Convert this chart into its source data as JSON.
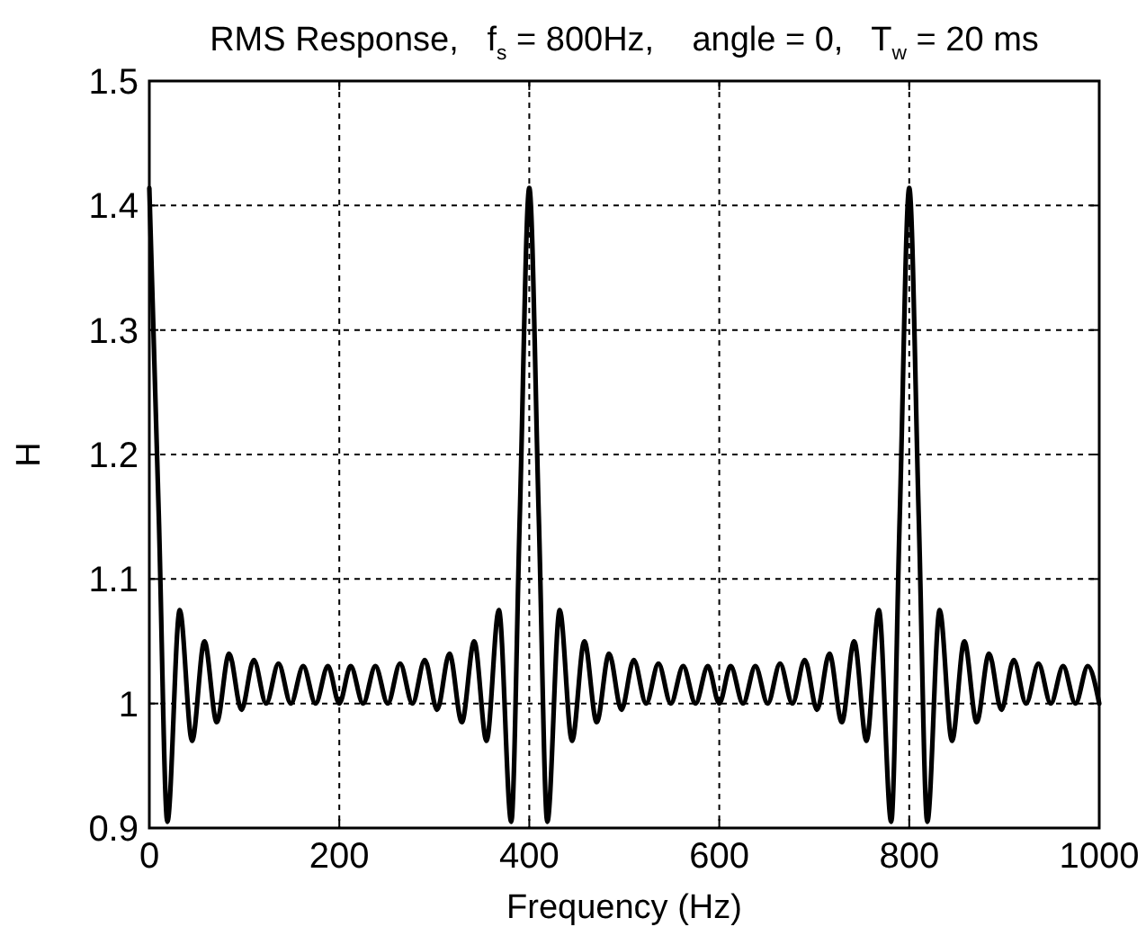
{
  "chart_data": {
    "type": "line",
    "title": "RMS Response,   f$_{s}$ = 800Hz,    angle = 0,   T$_{w}$ = 20 ms",
    "xlabel": "Frequency (Hz)",
    "ylabel": "H",
    "x": [
      0,
      10,
      19,
      32,
      45,
      58,
      71,
      84,
      97,
      110,
      123,
      136,
      149,
      162,
      175,
      188,
      200,
      212,
      225,
      238,
      251,
      264,
      277,
      290,
      303,
      316,
      329,
      342,
      355,
      368,
      381,
      390,
      400,
      410,
      419,
      432,
      445,
      458,
      471,
      484,
      497,
      510,
      523,
      536,
      549,
      562,
      575,
      588,
      600,
      612,
      625,
      638,
      651,
      664,
      677,
      690,
      703,
      716,
      729,
      742,
      755,
      768,
      781,
      790,
      800,
      810,
      819,
      832,
      845,
      858,
      871,
      884,
      897,
      910,
      923,
      936,
      949,
      962,
      975,
      988,
      1000
    ],
    "series": [
      {
        "color": "#000000",
        "values": [
          1.414,
          1.15,
          0.905,
          1.075,
          0.97,
          1.05,
          0.985,
          1.04,
          0.995,
          1.035,
          1.0,
          1.032,
          1.0,
          1.03,
          1.0,
          1.03,
          1.0,
          1.03,
          1.0,
          1.03,
          1.0,
          1.032,
          1.0,
          1.035,
          0.995,
          1.04,
          0.985,
          1.05,
          0.97,
          1.075,
          0.905,
          1.15,
          1.414,
          1.15,
          0.905,
          1.075,
          0.97,
          1.05,
          0.985,
          1.04,
          0.995,
          1.035,
          1.0,
          1.032,
          1.0,
          1.03,
          1.0,
          1.03,
          1.0,
          1.03,
          1.0,
          1.03,
          1.0,
          1.032,
          1.0,
          1.035,
          0.995,
          1.04,
          0.985,
          1.05,
          0.97,
          1.075,
          0.905,
          1.15,
          1.414,
          1.15,
          0.905,
          1.075,
          0.97,
          1.05,
          0.985,
          1.04,
          0.995,
          1.035,
          1.0,
          1.032,
          1.0,
          1.03,
          1.0,
          1.03,
          1.0
        ]
      }
    ],
    "xlim": [
      0,
      1000
    ],
    "xticks": [
      0,
      200,
      400,
      600,
      800,
      1000
    ],
    "ylim": [
      0.9,
      1.5
    ],
    "yticks": [
      0.9,
      1,
      1.1,
      1.2,
      1.3,
      1.4,
      1.5
    ],
    "grid": true,
    "line_style": "solid",
    "marker": "none"
  }
}
